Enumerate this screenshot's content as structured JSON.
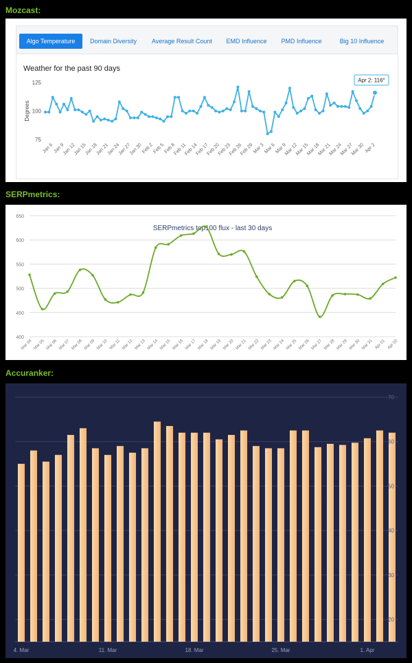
{
  "sections": {
    "mozcast": "Mozcast:",
    "serpmetrics": "SERPmetrics:",
    "accuranker": "Accuranker:"
  },
  "mozcast": {
    "tabs": [
      {
        "label": "Algo Temperature",
        "active": true
      },
      {
        "label": "Domain Diversity",
        "active": false
      },
      {
        "label": "Average Result Count",
        "active": false
      },
      {
        "label": "EMD Influence",
        "active": false
      },
      {
        "label": "PMD Influence",
        "active": false
      },
      {
        "label": "Big 10 Influence",
        "active": false
      }
    ],
    "subtitle": "Weather for the past 90 days",
    "tooltip": "Apr 2: 116°",
    "colors": {
      "line": "#3fb1e3",
      "tab_active": "#1a80e6"
    }
  },
  "chart_data": [
    {
      "type": "line",
      "title": "Weather for the past 90 days",
      "ylabel": "Degrees",
      "ylim": [
        75,
        125
      ],
      "yticks": [
        75,
        100,
        125
      ],
      "grid": false,
      "xtick_labels": [
        "Jan 6",
        "Jan 9",
        "Jan 12",
        "Jan 15",
        "Jan 18",
        "Jan 21",
        "Jan 24",
        "Jan 27",
        "Jan 30",
        "Feb 2",
        "Feb 5",
        "Feb 8",
        "Feb 11",
        "Feb 14",
        "Feb 17",
        "Feb 20",
        "Feb 23",
        "Feb 26",
        "Feb 29",
        "Mar 3",
        "Mar 6",
        "Mar 9",
        "Mar 12",
        "Mar 15",
        "Mar 18",
        "Mar 21",
        "Mar 24",
        "Mar 27",
        "Mar 30",
        "Apr 2"
      ],
      "x": [
        "Jan 4",
        "Jan 5",
        "Jan 6",
        "Jan 7",
        "Jan 8",
        "Jan 9",
        "Jan 10",
        "Jan 11",
        "Jan 12",
        "Jan 13",
        "Jan 14",
        "Jan 15",
        "Jan 16",
        "Jan 17",
        "Jan 18",
        "Jan 19",
        "Jan 20",
        "Jan 21",
        "Jan 22",
        "Jan 23",
        "Jan 24",
        "Jan 25",
        "Jan 26",
        "Jan 27",
        "Jan 28",
        "Jan 29",
        "Jan 30",
        "Jan 31",
        "Feb 1",
        "Feb 2",
        "Feb 3",
        "Feb 4",
        "Feb 5",
        "Feb 6",
        "Feb 7",
        "Feb 8",
        "Feb 9",
        "Feb 10",
        "Feb 11",
        "Feb 12",
        "Feb 13",
        "Feb 14",
        "Feb 15",
        "Feb 16",
        "Feb 17",
        "Feb 18",
        "Feb 19",
        "Feb 20",
        "Feb 21",
        "Feb 22",
        "Feb 23",
        "Feb 24",
        "Feb 25",
        "Feb 26",
        "Feb 27",
        "Feb 28",
        "Feb 29",
        "Mar 1",
        "Mar 2",
        "Mar 3",
        "Mar 4",
        "Mar 5",
        "Mar 6",
        "Mar 7",
        "Mar 8",
        "Mar 9",
        "Mar 10",
        "Mar 11",
        "Mar 12",
        "Mar 13",
        "Mar 14",
        "Mar 15",
        "Mar 16",
        "Mar 17",
        "Mar 18",
        "Mar 19",
        "Mar 20",
        "Mar 21",
        "Mar 22",
        "Mar 23",
        "Mar 24",
        "Mar 25",
        "Mar 26",
        "Mar 27",
        "Mar 28",
        "Mar 29",
        "Mar 30",
        "Mar 31",
        "Apr 1",
        "Apr 2"
      ],
      "values": [
        99,
        99,
        112,
        106,
        99,
        106,
        101,
        111,
        101,
        101,
        99,
        97,
        100,
        91,
        95,
        92,
        93,
        92,
        91,
        93,
        108,
        102,
        100,
        94,
        94,
        94,
        99,
        97,
        95,
        95,
        94,
        93,
        91,
        95,
        95,
        112,
        112,
        100,
        98,
        100,
        100,
        98,
        104,
        112,
        105,
        103,
        100,
        99,
        100,
        102,
        101,
        108,
        121,
        100,
        100,
        117,
        104,
        102,
        100,
        99,
        80,
        82,
        99,
        95,
        101,
        107,
        120,
        103,
        98,
        100,
        102,
        111,
        113,
        101,
        98,
        100,
        115,
        105,
        107,
        104,
        104,
        104,
        103,
        117,
        109,
        102,
        98,
        100,
        104,
        116
      ],
      "tooltip_point": {
        "x": "Apr 2",
        "y": 116
      }
    },
    {
      "type": "line",
      "title": "SERPmetrics top100 flux - last 30 days",
      "ylim": [
        400,
        650
      ],
      "yticks": [
        400,
        450,
        500,
        550,
        600,
        650
      ],
      "grid": true,
      "color": "#6aaa2a",
      "categories": [
        "Mar 04",
        "Mar 05",
        "Mar 06",
        "Mar 07",
        "Mar 08",
        "Mar 09",
        "Mar 10",
        "Mar 11",
        "Mar 12",
        "Mar 13",
        "Mar 14",
        "Mar 15",
        "Mar 16",
        "Mar 17",
        "Mar 18",
        "Mar 19",
        "Mar 20",
        "Mar 21",
        "Mar 22",
        "Mar 23",
        "Mar 24",
        "Mar 25",
        "Mar 26",
        "Mar 27",
        "Mar 28",
        "Mar 29",
        "Mar 30",
        "Mar 31",
        "Apr 01",
        "Apr 02"
      ],
      "values": [
        528,
        457,
        489,
        493,
        538,
        527,
        477,
        471,
        487,
        491,
        584,
        591,
        609,
        613,
        627,
        571,
        570,
        576,
        524,
        488,
        481,
        515,
        505,
        441,
        485,
        488,
        487,
        479,
        509,
        522
      ]
    },
    {
      "type": "bar",
      "color": "#f7c48e",
      "ylim": [
        0,
        11
      ],
      "ytick_labels": [
        "20",
        "30",
        "40",
        "50",
        "60",
        "70"
      ],
      "grid": true,
      "xtick_labels": [
        "4. Mar",
        "11. Mar",
        "18. Mar",
        "25. Mar",
        "1. Apr"
      ],
      "categories": [
        "Mar 4",
        "Mar 5",
        "Mar 6",
        "Mar 7",
        "Mar 8",
        "Mar 9",
        "Mar 10",
        "Mar 11",
        "Mar 12",
        "Mar 13",
        "Mar 14",
        "Mar 15",
        "Mar 16",
        "Mar 17",
        "Mar 18",
        "Mar 19",
        "Mar 20",
        "Mar 21",
        "Mar 22",
        "Mar 23",
        "Mar 24",
        "Mar 25",
        "Mar 26",
        "Mar 27",
        "Mar 28",
        "Mar 29",
        "Mar 30",
        "Mar 31",
        "Apr 1",
        "Apr 2",
        "Apr 3"
      ],
      "values": [
        8.0,
        8.6,
        8.1,
        8.4,
        9.3,
        9.6,
        8.7,
        8.4,
        8.8,
        8.5,
        8.7,
        9.9,
        9.7,
        9.4,
        9.4,
        9.4,
        9.1,
        9.3,
        9.5,
        8.8,
        8.7,
        8.7,
        9.5,
        9.5,
        8.75,
        8.9,
        8.85,
        8.95,
        9.15,
        9.5,
        9.4
      ]
    }
  ]
}
